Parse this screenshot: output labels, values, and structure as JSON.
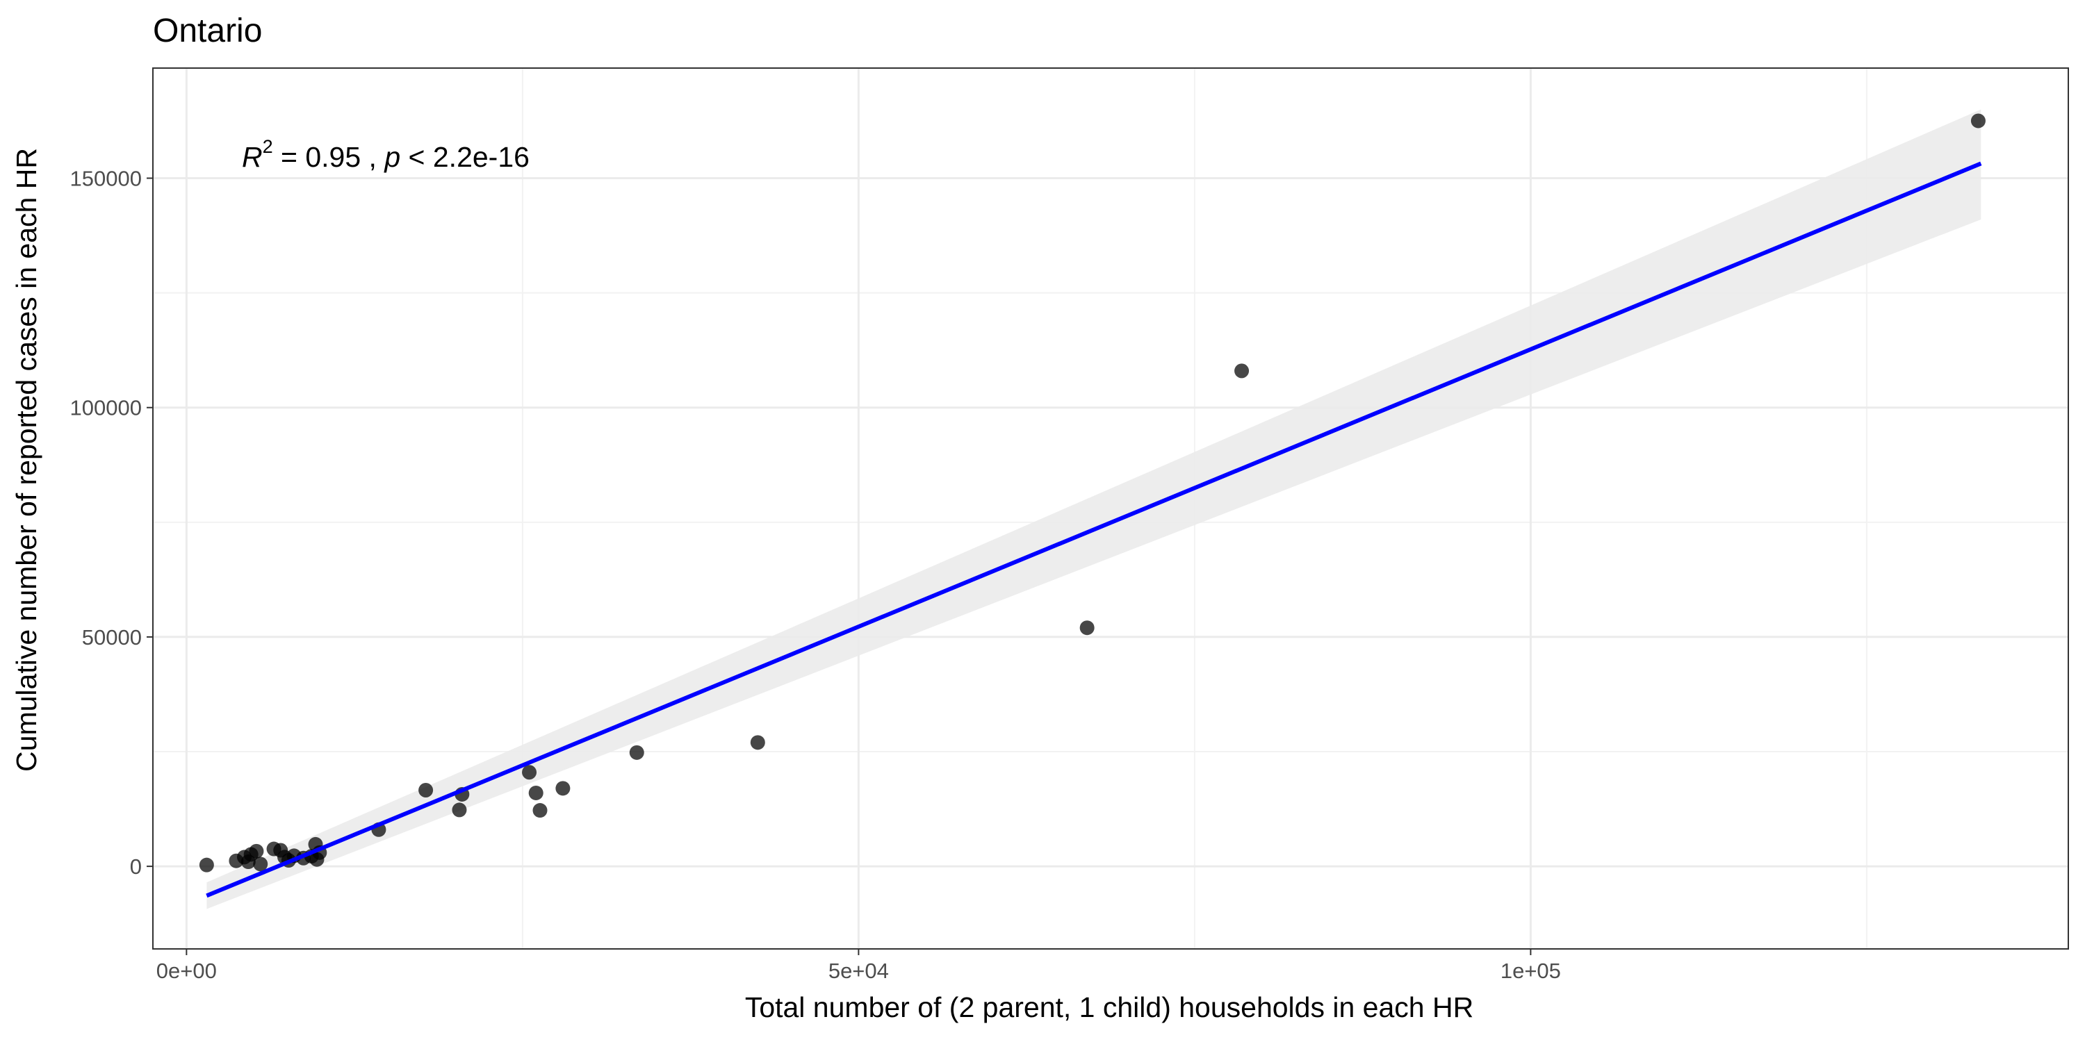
{
  "chart_data": {
    "type": "scatter",
    "title": "Ontario",
    "xlabel": "Total number of (2 parent, 1 child) households in each HR",
    "ylabel": "Cumulative number of reported cases in each HR",
    "xlim": [
      -2500,
      140000
    ],
    "ylim": [
      -18000,
      174000
    ],
    "x_ticks": [
      {
        "value": 0,
        "label": "0e+00"
      },
      {
        "value": 50000,
        "label": "5e+04"
      },
      {
        "value": 100000,
        "label": "1e+05"
      }
    ],
    "x_minor": [
      25000,
      75000,
      125000
    ],
    "y_ticks": [
      {
        "value": 0,
        "label": "0"
      },
      {
        "value": 50000,
        "label": "50000"
      },
      {
        "value": 100000,
        "label": "100000"
      },
      {
        "value": 150000,
        "label": "150000"
      }
    ],
    "y_minor": [
      25000,
      75000,
      125000
    ],
    "grid": true,
    "annotation": {
      "r_symbol": "R",
      "r_exponent": "2",
      "r2_text": " = 0.95 , ",
      "p_symbol": "p",
      "p_text": " < 2.2e-16"
    },
    "fit": {
      "x": [
        1500,
        133500
      ],
      "y": [
        -6400,
        153200
      ],
      "ci_upper": [
        -3500,
        165000
      ],
      "ci_lower": [
        -9300,
        141000
      ],
      "color": "#0000ff",
      "band_color": "#ebebeb"
    },
    "points": [
      {
        "x": 133300,
        "y": 162500
      },
      {
        "x": 78500,
        "y": 108000
      },
      {
        "x": 67000,
        "y": 52000
      },
      {
        "x": 42500,
        "y": 27000
      },
      {
        "x": 33500,
        "y": 24800
      },
      {
        "x": 28000,
        "y": 17000
      },
      {
        "x": 25500,
        "y": 20500
      },
      {
        "x": 26000,
        "y": 16000
      },
      {
        "x": 26300,
        "y": 12200
      },
      {
        "x": 17800,
        "y": 16600
      },
      {
        "x": 20500,
        "y": 15700
      },
      {
        "x": 20300,
        "y": 12300
      },
      {
        "x": 14300,
        "y": 8000
      },
      {
        "x": 1500,
        "y": 300
      },
      {
        "x": 3700,
        "y": 1200
      },
      {
        "x": 4300,
        "y": 2000
      },
      {
        "x": 4800,
        "y": 2600
      },
      {
        "x": 5200,
        "y": 3300
      },
      {
        "x": 4600,
        "y": 1000
      },
      {
        "x": 5500,
        "y": 500
      },
      {
        "x": 6500,
        "y": 3800
      },
      {
        "x": 7000,
        "y": 3500
      },
      {
        "x": 7300,
        "y": 2000
      },
      {
        "x": 7600,
        "y": 1300
      },
      {
        "x": 8000,
        "y": 2300
      },
      {
        "x": 8700,
        "y": 1800
      },
      {
        "x": 9300,
        "y": 2200
      },
      {
        "x": 9600,
        "y": 4800
      },
      {
        "x": 9700,
        "y": 1500
      },
      {
        "x": 9900,
        "y": 3000
      }
    ],
    "point_color": "#000000"
  }
}
